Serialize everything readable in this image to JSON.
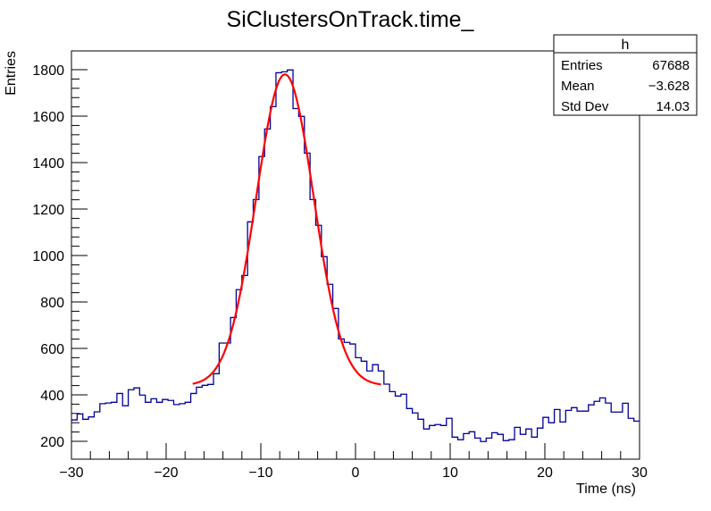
{
  "chart_data": {
    "type": "histogram",
    "title": "SiClustersOnTrack.time_",
    "xlabel": "Time (ns)",
    "ylabel": "Entries",
    "xlim": [
      -30,
      30
    ],
    "ylim": [
      123,
      1881
    ],
    "x_ticks": [
      -30,
      -20,
      -10,
      0,
      10,
      20,
      30
    ],
    "y_ticks": [
      200,
      400,
      600,
      800,
      1000,
      1200,
      1400,
      1600,
      1800
    ],
    "bin_width": 0.6,
    "line_color": "#000099",
    "values": [
      292,
      318,
      295,
      305,
      327,
      362,
      365,
      368,
      406,
      353,
      422,
      430,
      399,
      368,
      383,
      368,
      380,
      376,
      358,
      362,
      368,
      406,
      433,
      441,
      445,
      491,
      623,
      623,
      733,
      853,
      914,
      1145,
      1241,
      1426,
      1545,
      1641,
      1787,
      1791,
      1799,
      1633,
      1599,
      1441,
      1241,
      1130,
      995,
      876,
      772,
      641,
      626,
      619,
      560,
      545,
      503,
      530,
      503,
      446,
      414,
      395,
      403,
      341,
      322,
      295,
      253,
      268,
      272,
      268,
      299,
      218,
      207,
      233,
      241,
      214,
      199,
      214,
      237,
      230,
      203,
      207,
      260,
      230,
      253,
      218,
      257,
      303,
      280,
      337,
      283,
      333,
      345,
      330,
      330,
      357,
      372,
      387,
      365,
      326,
      326,
      364,
      299,
      287
    ],
    "fit": {
      "function": "gaus+const",
      "color": "#ff0000",
      "range": [
        -17.2,
        2.7
      ],
      "constant": 440,
      "amplitude": 1340,
      "mean": -7.45,
      "sigma": 3.03
    },
    "stats": {
      "name": "h",
      "rows": [
        {
          "label": "Entries",
          "value": "67688"
        },
        {
          "label": "Mean",
          "value": "−3.628"
        },
        {
          "label": "Std Dev",
          "value": "14.03"
        }
      ]
    }
  }
}
